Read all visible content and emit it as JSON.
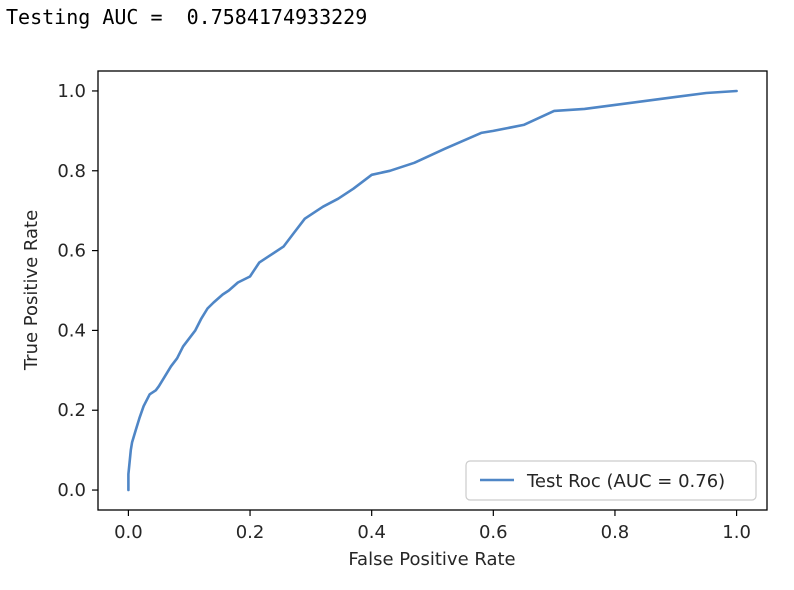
{
  "output": {
    "label": "Testing AUC = ",
    "value": "0.7584174933229"
  },
  "chart_data": {
    "type": "line",
    "xlabel": "False Positive Rate",
    "ylabel": "True Positive Rate",
    "xlim": [
      -0.05,
      1.05
    ],
    "ylim": [
      -0.05,
      1.05
    ],
    "xticks": [
      0.0,
      0.2,
      0.4,
      0.6,
      0.8,
      1.0
    ],
    "xtick_labels": [
      "0.0",
      "0.2",
      "0.4",
      "0.6",
      "0.8",
      "1.0"
    ],
    "yticks": [
      0.0,
      0.2,
      0.4,
      0.6,
      0.8,
      1.0
    ],
    "ytick_labels": [
      "0.0",
      "0.2",
      "0.4",
      "0.6",
      "0.8",
      "1.0"
    ],
    "grid": false,
    "legend_position": "bottom-right",
    "series": [
      {
        "name": "Test Roc (AUC = 0.76)",
        "color": "#4f86c6",
        "x": [
          0.0,
          0.0,
          0.002,
          0.004,
          0.006,
          0.008,
          0.012,
          0.018,
          0.025,
          0.035,
          0.045,
          0.05,
          0.058,
          0.07,
          0.08,
          0.09,
          0.1,
          0.11,
          0.12,
          0.13,
          0.14,
          0.155,
          0.165,
          0.18,
          0.2,
          0.215,
          0.23,
          0.255,
          0.27,
          0.29,
          0.31,
          0.32,
          0.345,
          0.37,
          0.4,
          0.43,
          0.47,
          0.52,
          0.58,
          0.6,
          0.65,
          0.7,
          0.75,
          0.8,
          0.85,
          0.9,
          0.95,
          1.0
        ],
        "y": [
          0.0,
          0.04,
          0.07,
          0.1,
          0.12,
          0.13,
          0.15,
          0.18,
          0.21,
          0.24,
          0.25,
          0.26,
          0.28,
          0.31,
          0.33,
          0.36,
          0.38,
          0.4,
          0.43,
          0.455,
          0.47,
          0.49,
          0.5,
          0.52,
          0.535,
          0.57,
          0.585,
          0.61,
          0.64,
          0.68,
          0.7,
          0.71,
          0.73,
          0.755,
          0.79,
          0.8,
          0.82,
          0.855,
          0.895,
          0.9,
          0.915,
          0.95,
          0.955,
          0.965,
          0.975,
          0.985,
          0.995,
          1.0
        ]
      }
    ]
  }
}
